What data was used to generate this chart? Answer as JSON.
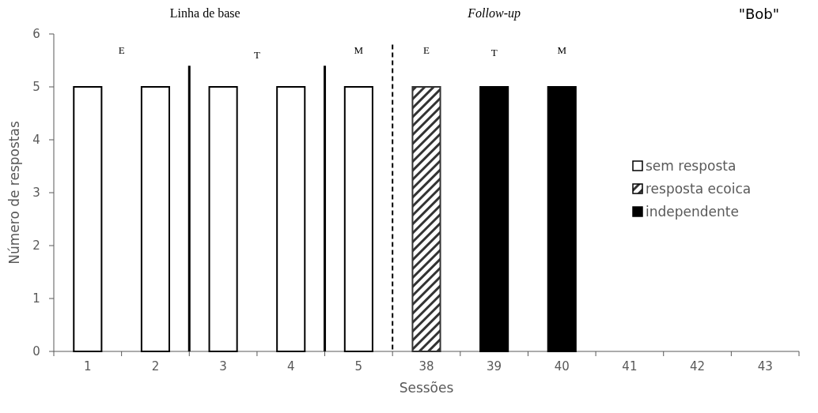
{
  "chart_data": {
    "type": "bar",
    "xlabel": "Sessões",
    "ylabel": "Número de respostas",
    "categories": [
      "1",
      "2",
      "3",
      "4",
      "5",
      "38",
      "39",
      "40",
      "41",
      "42",
      "43"
    ],
    "series": [
      {
        "name": "sem resposta",
        "color": "#ffffff",
        "values": [
          5,
          5,
          5,
          5,
          5,
          null,
          null,
          null,
          null,
          null,
          null
        ]
      },
      {
        "name": "resposta ecoica",
        "color": "#333333",
        "values": [
          null,
          null,
          null,
          null,
          null,
          5,
          null,
          null,
          null,
          null,
          null
        ]
      },
      {
        "name": "independente",
        "color": "#000000",
        "values": [
          null,
          null,
          null,
          null,
          null,
          null,
          5,
          5,
          null,
          null,
          null
        ]
      }
    ],
    "ylim": [
      0,
      6
    ],
    "yticks": [
      0,
      1,
      2,
      3,
      4,
      5,
      6
    ],
    "grid": false,
    "legend": "right",
    "annotations": [
      "Linha de base",
      "Follow-up",
      "\"Bob\"",
      "E",
      "T",
      "M",
      "E",
      "T",
      "M"
    ]
  }
}
